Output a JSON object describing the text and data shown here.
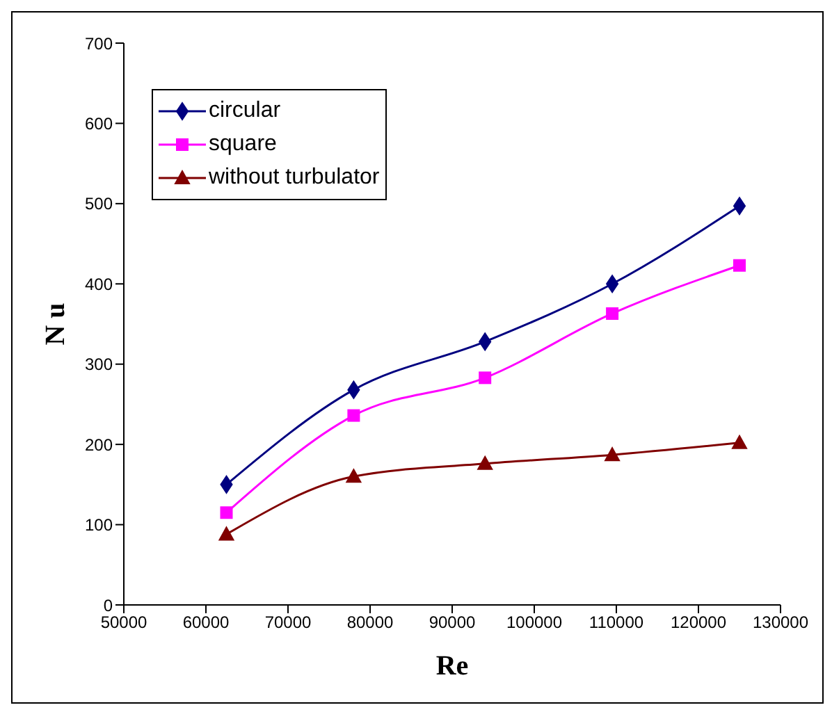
{
  "chart_data": {
    "type": "line",
    "xlabel": "Re",
    "ylabel": "N u",
    "x": [
      62500,
      78000,
      94000,
      109500,
      125000
    ],
    "xlim": [
      50000,
      130000
    ],
    "xticks": [
      50000,
      60000,
      70000,
      80000,
      90000,
      100000,
      110000,
      120000,
      130000
    ],
    "ylim": [
      0,
      700
    ],
    "yticks": [
      0,
      100,
      200,
      300,
      400,
      500,
      600,
      700
    ],
    "grid": false,
    "legend": "top left",
    "line_style": "solid",
    "series": [
      {
        "name": "circular",
        "color": "#000080",
        "marker": "diamond",
        "values": [
          150,
          268,
          328,
          400,
          497
        ]
      },
      {
        "name": "square",
        "color": "#ff00ff",
        "marker": "square",
        "values": [
          115,
          236,
          283,
          363,
          423
        ]
      },
      {
        "name": "without turbulator",
        "color": "#800000",
        "marker": "triangle",
        "values": [
          88,
          160,
          176,
          187,
          202
        ]
      }
    ]
  }
}
